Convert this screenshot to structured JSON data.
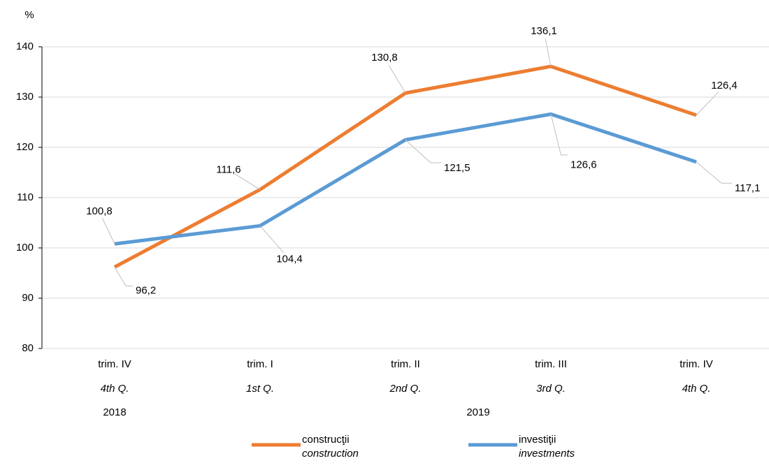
{
  "chart_data": {
    "type": "line",
    "y_unit": "%",
    "categories": [
      {
        "label": "trim. IV",
        "label_en": "4th Q."
      },
      {
        "label": "trim. I",
        "label_en": "1st Q."
      },
      {
        "label": "trim. II",
        "label_en": "2nd Q."
      },
      {
        "label": "trim. III",
        "label_en": "3rd Q."
      },
      {
        "label": "trim. IV",
        "label_en": "4th Q."
      }
    ],
    "years": [
      "2018",
      "2019",
      null,
      null,
      null
    ],
    "series": [
      {
        "name": "construcţii",
        "name_en": "construction",
        "color": "#ed7d31",
        "values": [
          96.2,
          111.6,
          130.8,
          136.1,
          126.4
        ],
        "value_labels": [
          "96,2",
          "111,6",
          "130,8",
          "136,1",
          "126,4"
        ]
      },
      {
        "name": "investiţii",
        "name_en": "investments",
        "color": "#5b9bd5",
        "values": [
          100.8,
          104.4,
          121.5,
          126.6,
          117.1
        ],
        "value_labels": [
          "100,8",
          "104,4",
          "121,5",
          "126,6",
          "117,1"
        ]
      }
    ],
    "ylim": [
      80,
      140
    ],
    "yticks": [
      80,
      90,
      100,
      110,
      120,
      130,
      140
    ],
    "grid": true,
    "legend": "bottom"
  }
}
